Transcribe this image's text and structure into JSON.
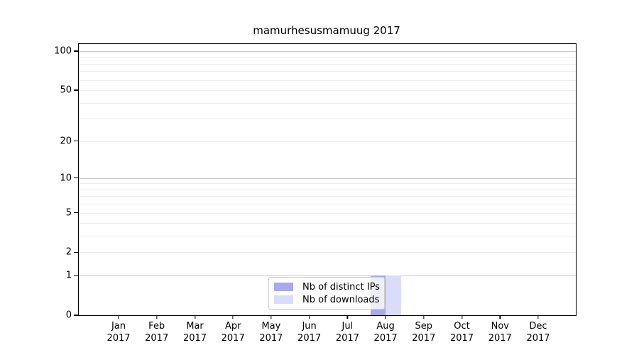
{
  "figure": {
    "background": "#ffffff"
  },
  "chart_data": {
    "type": "bar",
    "title": "mamurhesusmamuug 2017",
    "categories": [
      "Jan",
      "Feb",
      "Mar",
      "Apr",
      "May",
      "Jun",
      "Jul",
      "Aug",
      "Sep",
      "Oct",
      "Nov",
      "Dec"
    ],
    "year": "2017",
    "series": [
      {
        "name": "Nb of distinct IPs",
        "color": "#a8aaec",
        "values": [
          0,
          0,
          0,
          0,
          0,
          0,
          0,
          1,
          0,
          0,
          0,
          0
        ]
      },
      {
        "name": "Nb of downloads",
        "color": "#dbdcf7",
        "values": [
          0,
          0,
          0,
          0,
          0,
          0,
          0,
          1,
          0,
          0,
          0,
          0
        ]
      }
    ],
    "xlabel": "",
    "ylabel": "",
    "yscale": "log1p",
    "ylim": [
      0,
      113
    ],
    "yticks": [
      0,
      1,
      2,
      5,
      10,
      20,
      50,
      100
    ],
    "major_gridlines": [
      1,
      10,
      100
    ],
    "minor_gridlines": [
      2,
      3,
      4,
      5,
      6,
      7,
      8,
      9,
      20,
      30,
      40,
      50,
      60,
      70,
      80,
      90
    ],
    "grid": "on",
    "legend_position": "lower center"
  },
  "legend": {
    "items": [
      {
        "label": "Nb of distinct IPs",
        "color": "#a8aaec"
      },
      {
        "label": "Nb of downloads",
        "color": "#dbdcf7"
      }
    ]
  },
  "colors": {
    "axis": "#000000",
    "grid_major": "#c9c9c9",
    "grid_minor": "#ededed",
    "legend_border": "#cccccc",
    "bar_distinct_ips": "#a8aaec",
    "bar_downloads": "#dbdcf7"
  }
}
